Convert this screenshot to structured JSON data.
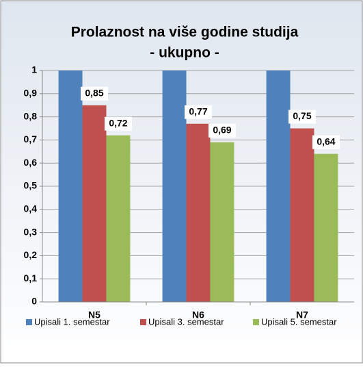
{
  "chart_data": {
    "type": "bar",
    "title": "Prolaznost na više godine studija",
    "subtitle": "- ukupno -",
    "categories": [
      "N5",
      "N6",
      "N7"
    ],
    "series": [
      {
        "name": "Upisali 1. semestar",
        "color": "#4f81bd",
        "values": [
          1,
          1,
          1
        ]
      },
      {
        "name": "Upisali 3. semestar",
        "color": "#c0504d",
        "values": [
          0.85,
          0.77,
          0.75
        ],
        "value_labels": [
          "0,85",
          "0,77",
          "0,75"
        ]
      },
      {
        "name": "Upisali 5. semestar",
        "color": "#9bbb59",
        "values": [
          0.72,
          0.69,
          0.64
        ],
        "value_labels": [
          "0,72",
          "0,69",
          "0,64"
        ]
      }
    ],
    "ylim": [
      0,
      1
    ],
    "yticks": [
      0,
      {
        "value": 0.1,
        "label": "0,1"
      },
      {
        "value": 0.2,
        "label": "0,2"
      },
      {
        "value": 0.3,
        "label": "0,3"
      },
      {
        "value": 0.4,
        "label": "0,4"
      },
      {
        "value": 0.5,
        "label": "0,5"
      },
      {
        "value": 0.6,
        "label": "0,6"
      },
      {
        "value": 0.7,
        "label": "0,7"
      },
      {
        "value": 0.8,
        "label": "0,8"
      },
      {
        "value": 0.9,
        "label": "0,9"
      },
      1
    ],
    "grid": true,
    "legend": "bottom"
  }
}
